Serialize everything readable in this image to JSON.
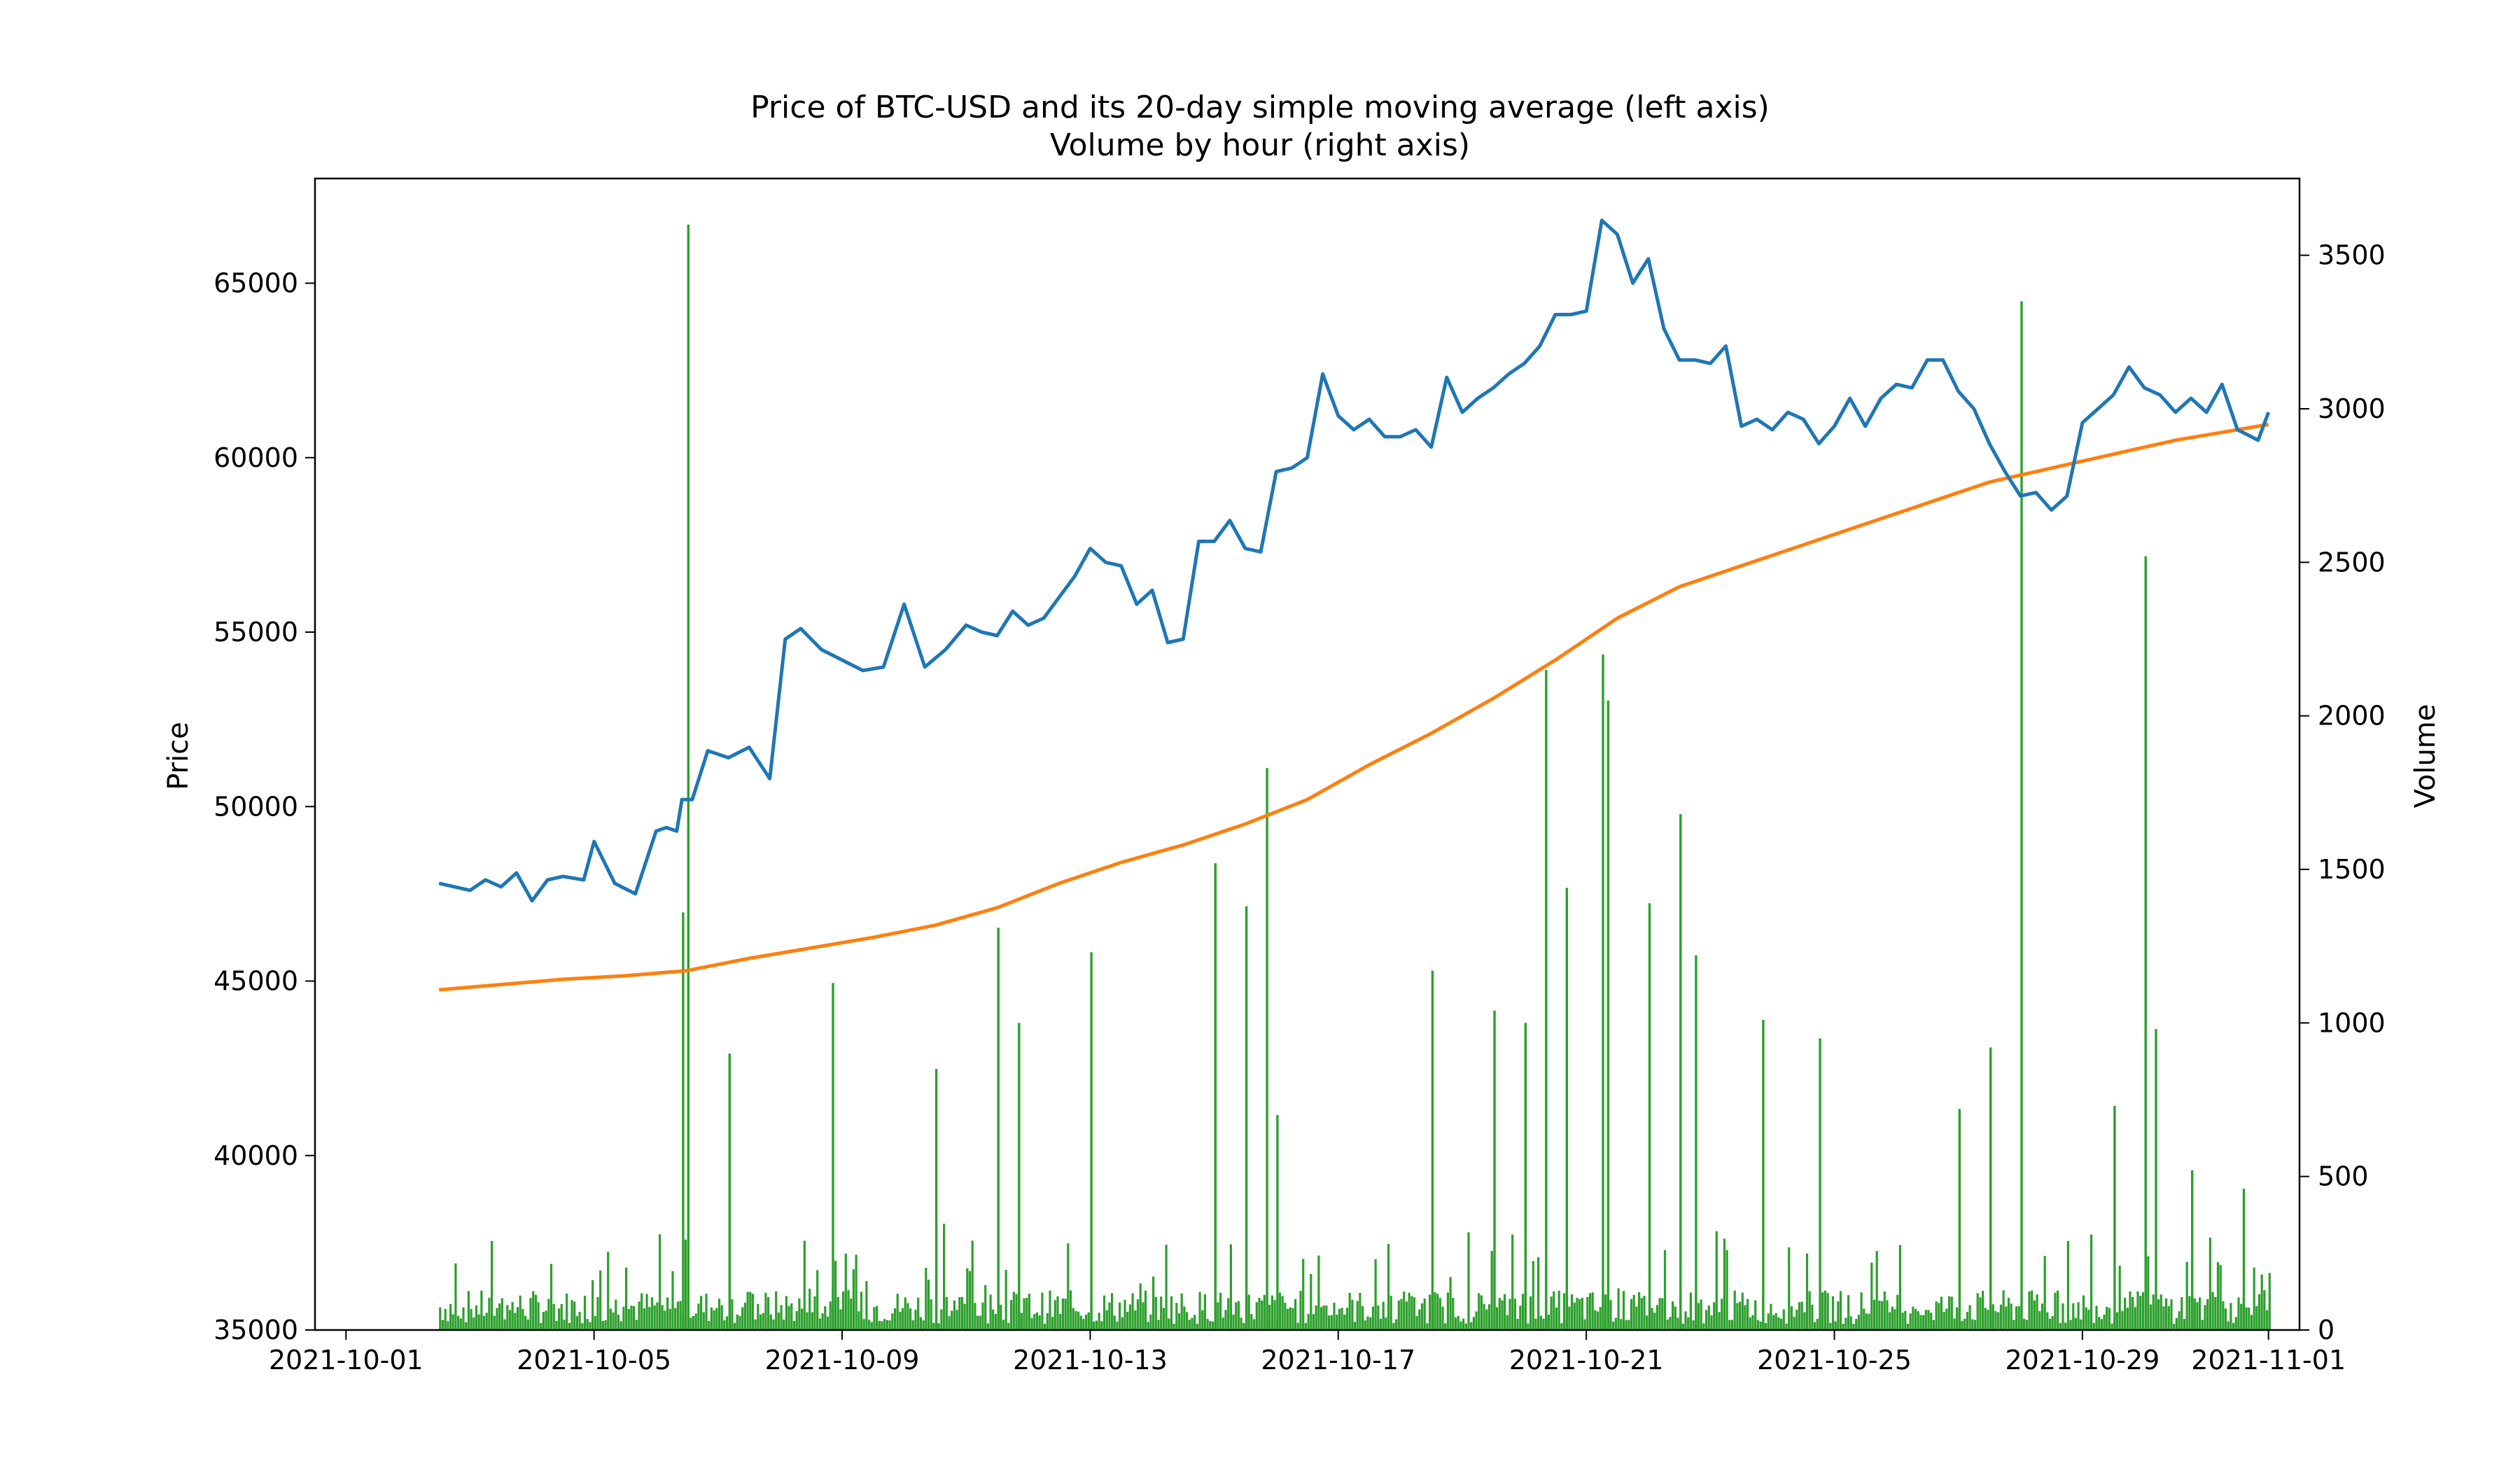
{
  "chart_data": {
    "type": "line",
    "title": "Price of BTC-USD and its 20-day simple moving average (left axis)",
    "subtitle": "Volume by hour (right axis)",
    "xlabel": "",
    "ylabel": "Price",
    "y2label": "Volume",
    "x_ticks": [
      "2021-10-01",
      "2021-10-05",
      "2021-10-09",
      "2021-10-13",
      "2021-10-17",
      "2021-10-21",
      "2021-10-25",
      "2021-10-29",
      "2021-11-01"
    ],
    "xlim": [
      "2021-09-30T12:00",
      "2021-11-01T12:00"
    ],
    "y_ticks": [
      35000,
      40000,
      45000,
      50000,
      55000,
      60000,
      65000
    ],
    "ylim": [
      35000,
      68000
    ],
    "y2_ticks": [
      0,
      500,
      1000,
      1500,
      2000,
      2500,
      3000,
      3500
    ],
    "y2lim": [
      0,
      3750
    ],
    "grid": false,
    "colors": {
      "price": "#1f77b4",
      "sma": "#ff7f0e",
      "volume": "#2ca02c"
    },
    "series": [
      {
        "key": "price",
        "axis": "left",
        "x": [
          "2021-10-02T12:00",
          "2021-10-03T00:00",
          "2021-10-03T06:00",
          "2021-10-03T12:00",
          "2021-10-03T18:00",
          "2021-10-04T00:00",
          "2021-10-04T06:00",
          "2021-10-04T12:00",
          "2021-10-04T20:00",
          "2021-10-05T00:00",
          "2021-10-05T08:00",
          "2021-10-05T16:00",
          "2021-10-06T00:00",
          "2021-10-06T04:00",
          "2021-10-06T08:00",
          "2021-10-06T10:00",
          "2021-10-06T14:00",
          "2021-10-06T20:00",
          "2021-10-07T04:00",
          "2021-10-07T12:00",
          "2021-10-07T20:00",
          "2021-10-08T02:00",
          "2021-10-08T08:00",
          "2021-10-08T16:00",
          "2021-10-09T00:00",
          "2021-10-09T08:00",
          "2021-10-09T16:00",
          "2021-10-10T00:00",
          "2021-10-10T08:00",
          "2021-10-10T16:00",
          "2021-10-11T00:00",
          "2021-10-11T06:00",
          "2021-10-11T12:00",
          "2021-10-11T18:00",
          "2021-10-12T00:00",
          "2021-10-12T06:00",
          "2021-10-12T12:00",
          "2021-10-12T18:00",
          "2021-10-13T00:00",
          "2021-10-13T06:00",
          "2021-10-13T12:00",
          "2021-10-13T18:00",
          "2021-10-14T00:00",
          "2021-10-14T06:00",
          "2021-10-14T12:00",
          "2021-10-14T18:00",
          "2021-10-15T00:00",
          "2021-10-15T06:00",
          "2021-10-15T12:00",
          "2021-10-15T18:00",
          "2021-10-16T00:00",
          "2021-10-16T06:00",
          "2021-10-16T12:00",
          "2021-10-16T18:00",
          "2021-10-17T00:00",
          "2021-10-17T06:00",
          "2021-10-17T12:00",
          "2021-10-17T18:00",
          "2021-10-18T00:00",
          "2021-10-18T06:00",
          "2021-10-18T12:00",
          "2021-10-18T18:00",
          "2021-10-19T00:00",
          "2021-10-19T06:00",
          "2021-10-19T12:00",
          "2021-10-19T18:00",
          "2021-10-20T00:00",
          "2021-10-20T06:00",
          "2021-10-20T12:00",
          "2021-10-20T18:00",
          "2021-10-21T00:00",
          "2021-10-21T06:00",
          "2021-10-21T12:00",
          "2021-10-21T18:00",
          "2021-10-22T00:00",
          "2021-10-22T06:00",
          "2021-10-22T12:00",
          "2021-10-22T18:00",
          "2021-10-23T00:00",
          "2021-10-23T06:00",
          "2021-10-23T12:00",
          "2021-10-23T18:00",
          "2021-10-24T00:00",
          "2021-10-24T06:00",
          "2021-10-24T12:00",
          "2021-10-24T18:00",
          "2021-10-25T00:00",
          "2021-10-25T06:00",
          "2021-10-25T12:00",
          "2021-10-25T18:00",
          "2021-10-26T00:00",
          "2021-10-26T06:00",
          "2021-10-26T12:00",
          "2021-10-26T18:00",
          "2021-10-27T00:00",
          "2021-10-27T06:00",
          "2021-10-27T12:00",
          "2021-10-27T18:00",
          "2021-10-28T00:00",
          "2021-10-28T06:00",
          "2021-10-28T12:00",
          "2021-10-28T18:00",
          "2021-10-29T00:00",
          "2021-10-29T06:00",
          "2021-10-29T12:00",
          "2021-10-29T18:00",
          "2021-10-30T00:00",
          "2021-10-30T06:00",
          "2021-10-30T12:00",
          "2021-10-30T18:00",
          "2021-10-31T00:00",
          "2021-10-31T06:00",
          "2021-10-31T12:00",
          "2021-10-31T20:00",
          "2021-11-01T00:00"
        ],
        "y": [
          47800,
          47600,
          47900,
          47700,
          48100,
          47300,
          47900,
          48000,
          47900,
          49000,
          47800,
          47500,
          49300,
          49400,
          49300,
          50200,
          50200,
          51600,
          51400,
          51700,
          50800,
          54800,
          55100,
          54500,
          54200,
          53900,
          54000,
          55800,
          54000,
          54500,
          55200,
          55000,
          54900,
          55600,
          55200,
          55400,
          56000,
          56600,
          57400,
          57000,
          56900,
          55800,
          56200,
          54700,
          54800,
          57600,
          57600,
          58200,
          57400,
          57300,
          59600,
          59700,
          60000,
          62400,
          61200,
          60800,
          61100,
          60600,
          60600,
          60800,
          60300,
          62300,
          61300,
          61700,
          62000,
          62400,
          62700,
          63200,
          64100,
          64100,
          64200,
          66800,
          66400,
          65000,
          65700,
          63700,
          62800,
          62800,
          62700,
          63200,
          60900,
          61100,
          60800,
          61300,
          61100,
          60400,
          60900,
          61700,
          60900,
          61700,
          62100,
          62000,
          62800,
          62800,
          61900,
          61400,
          60400,
          59600,
          58900,
          59000,
          58500,
          58900,
          61000,
          61400,
          61800,
          62600,
          62000,
          61800,
          61300,
          61700,
          61300,
          62100,
          60800,
          60500,
          61300
        ]
      },
      {
        "key": "sma",
        "axis": "left",
        "x": [
          "2021-10-02T12:00",
          "2021-10-03T12:00",
          "2021-10-04T12:00",
          "2021-10-05T12:00",
          "2021-10-06T12:00",
          "2021-10-07T12:00",
          "2021-10-08T12:00",
          "2021-10-09T12:00",
          "2021-10-10T12:00",
          "2021-10-11T12:00",
          "2021-10-12T12:00",
          "2021-10-13T12:00",
          "2021-10-14T12:00",
          "2021-10-15T12:00",
          "2021-10-16T12:00",
          "2021-10-17T12:00",
          "2021-10-18T12:00",
          "2021-10-19T12:00",
          "2021-10-20T12:00",
          "2021-10-21T12:00",
          "2021-10-22T12:00",
          "2021-10-23T12:00",
          "2021-10-24T12:00",
          "2021-10-25T12:00",
          "2021-10-26T12:00",
          "2021-10-27T12:00",
          "2021-10-28T12:00",
          "2021-10-29T12:00",
          "2021-10-30T12:00",
          "2021-10-31T12:00",
          "2021-11-01T00:00"
        ],
        "y": [
          44750,
          44900,
          45050,
          45150,
          45300,
          45650,
          45950,
          46250,
          46600,
          47100,
          47800,
          48400,
          48900,
          49500,
          50200,
          51200,
          52100,
          53100,
          54200,
          55400,
          56300,
          56900,
          57500,
          58100,
          58700,
          59300,
          59700,
          60100,
          60500,
          60800,
          60950
        ]
      },
      {
        "key": "volume",
        "axis": "right",
        "spikes": [
          {
            "x": "2021-10-06T12:00",
            "y": 3600
          },
          {
            "x": "2021-10-06T10:00",
            "y": 1360
          },
          {
            "x": "2021-10-07T04:00",
            "y": 900
          },
          {
            "x": "2021-10-08T20:00",
            "y": 1130
          },
          {
            "x": "2021-10-10T12:00",
            "y": 850
          },
          {
            "x": "2021-10-11T12:00",
            "y": 1310
          },
          {
            "x": "2021-10-11T20:00",
            "y": 1000
          },
          {
            "x": "2021-10-13T00:00",
            "y": 1230
          },
          {
            "x": "2021-10-15T00:00",
            "y": 1520
          },
          {
            "x": "2021-10-15T12:00",
            "y": 1380
          },
          {
            "x": "2021-10-15T20:00",
            "y": 1830
          },
          {
            "x": "2021-10-16T00:00",
            "y": 700
          },
          {
            "x": "2021-10-18T12:00",
            "y": 1170
          },
          {
            "x": "2021-10-19T12:00",
            "y": 1040
          },
          {
            "x": "2021-10-20T00:00",
            "y": 1000
          },
          {
            "x": "2021-10-20T08:00",
            "y": 2150
          },
          {
            "x": "2021-10-20T16:00",
            "y": 1440
          },
          {
            "x": "2021-10-21T06:00",
            "y": 2200
          },
          {
            "x": "2021-10-21T08:00",
            "y": 2050
          },
          {
            "x": "2021-10-22T00:00",
            "y": 1390
          },
          {
            "x": "2021-10-22T12:00",
            "y": 1680
          },
          {
            "x": "2021-10-22T18:00",
            "y": 1220
          },
          {
            "x": "2021-10-23T20:00",
            "y": 1010
          },
          {
            "x": "2021-10-24T18:00",
            "y": 950
          },
          {
            "x": "2021-10-27T00:00",
            "y": 720
          },
          {
            "x": "2021-10-27T12:00",
            "y": 920
          },
          {
            "x": "2021-10-28T00:00",
            "y": 3350
          },
          {
            "x": "2021-10-29T12:00",
            "y": 730
          },
          {
            "x": "2021-10-30T00:00",
            "y": 2520
          },
          {
            "x": "2021-10-30T04:00",
            "y": 980
          },
          {
            "x": "2021-10-30T18:00",
            "y": 520
          },
          {
            "x": "2021-10-31T14:00",
            "y": 460
          }
        ]
      }
    ]
  }
}
